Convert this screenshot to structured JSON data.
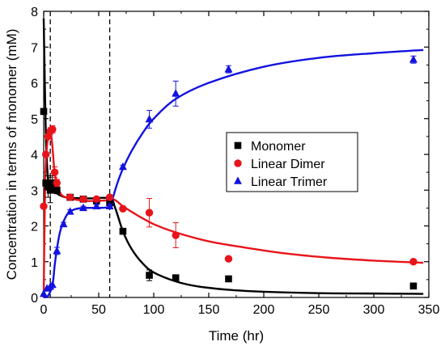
{
  "chart_data": {
    "type": "scatter",
    "title": "",
    "xlabel": "Time (hr)",
    "ylabel": "Concentration in terms of monomer (mM)",
    "xlim": [
      0,
      350
    ],
    "ylim": [
      0,
      8
    ],
    "x_ticks": [
      0,
      50,
      100,
      150,
      200,
      250,
      300,
      350
    ],
    "y_ticks": [
      0,
      1,
      2,
      3,
      4,
      5,
      6,
      7,
      8
    ],
    "grid": false,
    "legend_position": "center-right",
    "vlines": [
      6,
      60
    ],
    "series": [
      {
        "name": "Monomer",
        "color": "#000000",
        "marker": "square",
        "points": [
          {
            "x": 0,
            "y": 5.2,
            "err": 0
          },
          {
            "x": 2,
            "y": 3.2,
            "err": 0
          },
          {
            "x": 4,
            "y": 3.1,
            "err": 0.3
          },
          {
            "x": 6,
            "y": 3.0,
            "err": 0.35
          },
          {
            "x": 8,
            "y": 3.2,
            "err": 0.2
          },
          {
            "x": 10,
            "y": 3.15,
            "err": 0.1
          },
          {
            "x": 12,
            "y": 3.0,
            "err": 0.1
          },
          {
            "x": 24,
            "y": 2.8,
            "err": 0.05
          },
          {
            "x": 36,
            "y": 2.75,
            "err": 0.05
          },
          {
            "x": 48,
            "y": 2.7,
            "err": 0.05
          },
          {
            "x": 60,
            "y": 2.65,
            "err": 0.05
          },
          {
            "x": 72,
            "y": 1.85,
            "err": 0.05
          },
          {
            "x": 96,
            "y": 0.62,
            "err": 0.15
          },
          {
            "x": 120,
            "y": 0.55,
            "err": 0.05
          },
          {
            "x": 168,
            "y": 0.52,
            "err": 0.05
          },
          {
            "x": 336,
            "y": 0.32,
            "err": 0.03
          }
        ],
        "fit": [
          [
            0,
            7.8
          ],
          [
            2,
            4.5
          ],
          [
            4,
            3.3
          ],
          [
            6,
            3.1
          ],
          [
            10,
            2.95
          ],
          [
            20,
            2.8
          ],
          [
            40,
            2.77
          ],
          [
            60,
            2.77
          ],
          [
            65,
            2.5
          ],
          [
            72,
            1.85
          ],
          [
            80,
            1.35
          ],
          [
            90,
            0.95
          ],
          [
            100,
            0.7
          ],
          [
            120,
            0.45
          ],
          [
            140,
            0.31
          ],
          [
            170,
            0.21
          ],
          [
            200,
            0.16
          ],
          [
            250,
            0.12
          ],
          [
            300,
            0.11
          ],
          [
            345,
            0.1
          ]
        ]
      },
      {
        "name": "Linear Dimer",
        "color": "#e8141b",
        "marker": "circle",
        "points": [
          {
            "x": 0,
            "y": 2.55,
            "err": 0
          },
          {
            "x": 2,
            "y": 4.0,
            "err": 0
          },
          {
            "x": 4,
            "y": 4.5,
            "err": 0
          },
          {
            "x": 6,
            "y": 4.65,
            "err": 0.1
          },
          {
            "x": 8,
            "y": 4.7,
            "err": 0.1
          },
          {
            "x": 10,
            "y": 3.5,
            "err": 0.15
          },
          {
            "x": 12,
            "y": 3.2,
            "err": 0.1
          },
          {
            "x": 24,
            "y": 2.8,
            "err": 0.05
          },
          {
            "x": 36,
            "y": 2.75,
            "err": 0.05
          },
          {
            "x": 48,
            "y": 2.75,
            "err": 0.05
          },
          {
            "x": 60,
            "y": 2.8,
            "err": 0.05
          },
          {
            "x": 72,
            "y": 2.48,
            "err": 0.05
          },
          {
            "x": 96,
            "y": 2.37,
            "err": 0.4
          },
          {
            "x": 120,
            "y": 1.74,
            "err": 0.35
          },
          {
            "x": 168,
            "y": 1.08,
            "err": 0.05
          },
          {
            "x": 336,
            "y": 1.0,
            "err": 0.03
          }
        ],
        "fit": [
          [
            0,
            0.0
          ],
          [
            1,
            2.5
          ],
          [
            2,
            3.8
          ],
          [
            4,
            4.5
          ],
          [
            6,
            4.7
          ],
          [
            8,
            4.2
          ],
          [
            10,
            3.5
          ],
          [
            14,
            3.0
          ],
          [
            20,
            2.8
          ],
          [
            40,
            2.7
          ],
          [
            60,
            2.72
          ],
          [
            65,
            2.72
          ],
          [
            72,
            2.55
          ],
          [
            85,
            2.3
          ],
          [
            100,
            2.05
          ],
          [
            120,
            1.82
          ],
          [
            150,
            1.57
          ],
          [
            180,
            1.41
          ],
          [
            220,
            1.23
          ],
          [
            260,
            1.11
          ],
          [
            300,
            1.03
          ],
          [
            345,
            0.97
          ]
        ]
      },
      {
        "name": "Linear Trimer",
        "color": "#1212e0",
        "marker": "triangle",
        "points": [
          {
            "x": 0,
            "y": 0.1,
            "err": 0
          },
          {
            "x": 3,
            "y": 0.25,
            "err": 0
          },
          {
            "x": 6,
            "y": 0.3,
            "err": 0
          },
          {
            "x": 8,
            "y": 0.35,
            "err": 0
          },
          {
            "x": 12,
            "y": 1.3,
            "err": 0.1
          },
          {
            "x": 18,
            "y": 2.05,
            "err": 0.05
          },
          {
            "x": 24,
            "y": 2.4,
            "err": 0.05
          },
          {
            "x": 36,
            "y": 2.5,
            "err": 0.05
          },
          {
            "x": 48,
            "y": 2.55,
            "err": 0.05
          },
          {
            "x": 60,
            "y": 2.55,
            "err": 0.05
          },
          {
            "x": 72,
            "y": 3.65,
            "err": 0.05
          },
          {
            "x": 96,
            "y": 4.98,
            "err": 0.25
          },
          {
            "x": 120,
            "y": 5.7,
            "err": 0.35
          },
          {
            "x": 168,
            "y": 6.38,
            "err": 0.1
          },
          {
            "x": 336,
            "y": 6.65,
            "err": 0.1
          }
        ],
        "fit": [
          [
            0,
            0.0
          ],
          [
            4,
            0.05
          ],
          [
            8,
            0.35
          ],
          [
            10,
            0.9
          ],
          [
            12,
            1.35
          ],
          [
            15,
            1.85
          ],
          [
            20,
            2.25
          ],
          [
            25,
            2.42
          ],
          [
            35,
            2.5
          ],
          [
            60,
            2.53
          ],
          [
            63,
            2.8
          ],
          [
            67,
            3.2
          ],
          [
            72,
            3.6
          ],
          [
            80,
            4.1
          ],
          [
            90,
            4.6
          ],
          [
            100,
            5.0
          ],
          [
            120,
            5.55
          ],
          [
            150,
            6.0
          ],
          [
            200,
            6.45
          ],
          [
            250,
            6.7
          ],
          [
            300,
            6.83
          ],
          [
            345,
            6.92
          ]
        ]
      }
    ]
  }
}
